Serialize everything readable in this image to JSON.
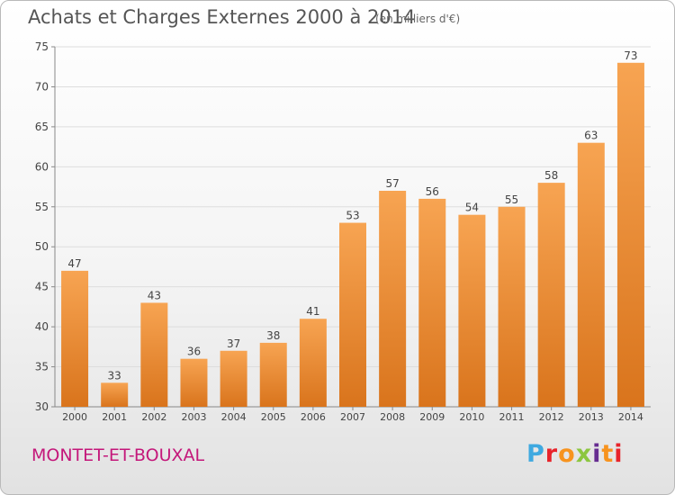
{
  "header": {
    "title": "Achats et Charges Externes 2000 à 2014",
    "subtitle": "(en milliers d'€)"
  },
  "footer": {
    "place": "MONTET-ET-BOUXAL",
    "logo_text": "Proxiti",
    "logo_colors": [
      "#3fa9e0",
      "#e8232a",
      "#f7931e",
      "#8cc63f",
      "#662d91",
      "#f7931e",
      "#e8232a"
    ]
  },
  "colors": {
    "bar_light": "#f7a452",
    "bar_dark": "#d9741c",
    "title": "#555555",
    "place": "#c4177a"
  },
  "chart_data": {
    "type": "bar",
    "title": "Achats et Charges Externes 2000 à 2014",
    "subtitle": "(en milliers d'€)",
    "categories": [
      "2000",
      "2001",
      "2002",
      "2003",
      "2004",
      "2005",
      "2006",
      "2007",
      "2008",
      "2009",
      "2010",
      "2011",
      "2012",
      "2013",
      "2014"
    ],
    "values": [
      47,
      33,
      43,
      36,
      37,
      38,
      41,
      53,
      57,
      56,
      54,
      55,
      58,
      63,
      73
    ],
    "ylim": [
      30,
      75
    ],
    "yticks": [
      30,
      35,
      40,
      45,
      50,
      55,
      60,
      65,
      70,
      75
    ],
    "grid": true
  }
}
